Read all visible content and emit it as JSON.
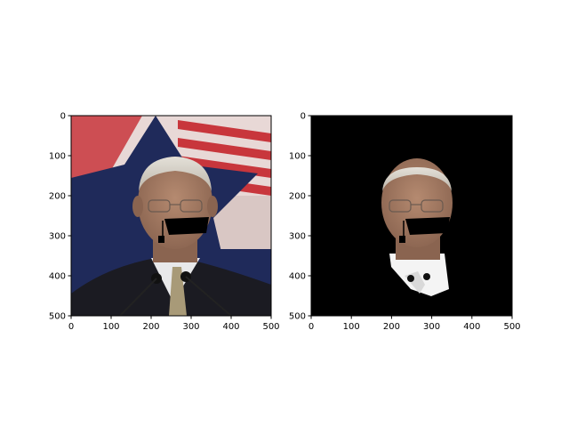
{
  "figure": {
    "panels": [
      {
        "id": "original",
        "image_desc": "photo-original",
        "x_ticks": [
          "0",
          "100",
          "200",
          "300",
          "400",
          "500"
        ],
        "y_ticks": [
          "0",
          "100",
          "200",
          "300",
          "400",
          "500"
        ],
        "xlim": [
          0,
          500
        ],
        "ylim": [
          500,
          0
        ]
      },
      {
        "id": "segmented",
        "image_desc": "photo-face-mask",
        "x_ticks": [
          "0",
          "100",
          "200",
          "300",
          "400",
          "500"
        ],
        "y_ticks": [
          "0",
          "100",
          "200",
          "300",
          "400",
          "500"
        ],
        "xlim": [
          0,
          500
        ],
        "ylim": [
          500,
          0
        ]
      }
    ],
    "colors": {
      "background": "#ffffff",
      "mask_background": "#000000",
      "flag_red": "#c8363c",
      "flag_navy": "#1f2a5a",
      "suit": "#1b1b22",
      "skin": "#a27a62",
      "hair": "#d8d4cc",
      "shirt": "#e8e8ea",
      "occluder": "#000000"
    }
  }
}
